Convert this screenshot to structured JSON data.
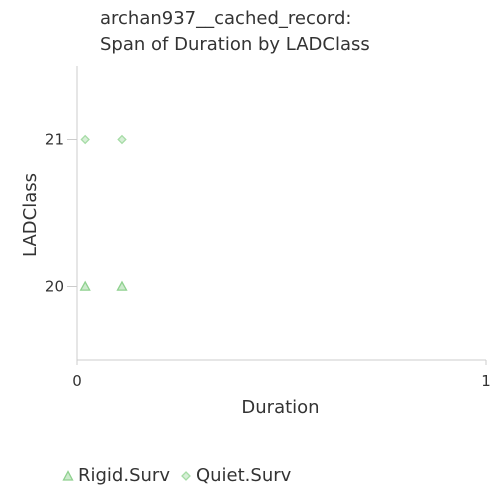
{
  "chart_data": {
    "type": "scatter",
    "title_lines": [
      "archan937__cached_record:",
      "Span of Duration by LADClass"
    ],
    "xlabel": "Duration",
    "ylabel": "LADClass",
    "xlim": [
      0,
      1
    ],
    "ylim": [
      19.5,
      21.5
    ],
    "x_ticks": [
      "0",
      "1"
    ],
    "y_ticks": [
      "20",
      "21"
    ],
    "series": [
      {
        "name": "Rigid.Surv",
        "marker": "triangle",
        "color": "#8fd18f",
        "points": [
          {
            "x": 0.02,
            "y": 20
          },
          {
            "x": 0.11,
            "y": 20
          }
        ]
      },
      {
        "name": "Quiet.Surv",
        "marker": "diamond",
        "color": "#a6dca6",
        "points": [
          {
            "x": 0.02,
            "y": 21
          },
          {
            "x": 0.11,
            "y": 21
          }
        ]
      }
    ],
    "grid": false,
    "legend_position": "bottom-left"
  }
}
